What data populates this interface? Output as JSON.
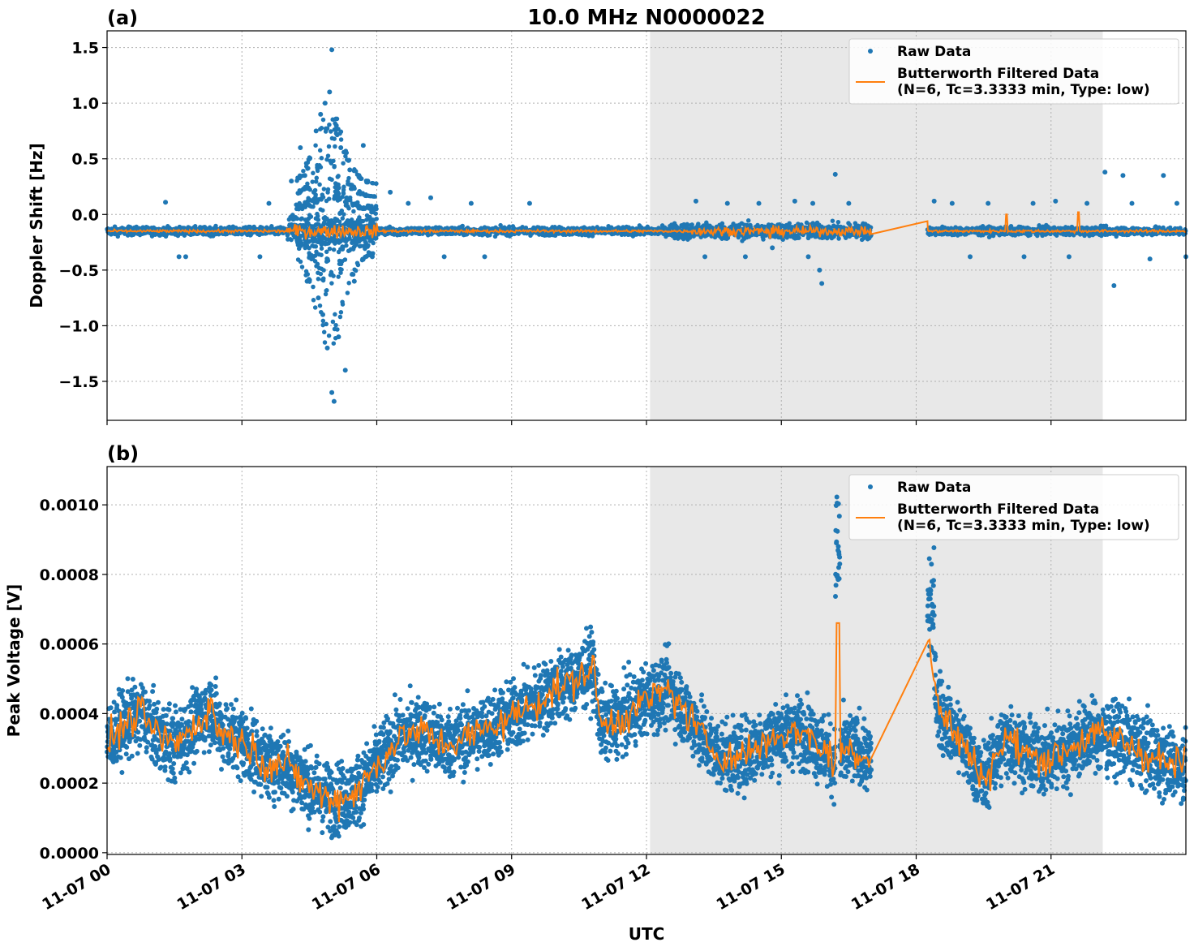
{
  "figure": {
    "title": "10.0 MHz N0000022",
    "xlabel": "UTC",
    "colors": {
      "raw": "#1f77b4",
      "filtered": "#ff7f0e",
      "shade": "#e8e8e8",
      "grid": "#b0b0b0"
    }
  },
  "chart_data": [
    {
      "type": "scatter",
      "panel_tag": "(a)",
      "title": "10.0 MHz N0000022",
      "ylabel": "Doppler Shift [Hz]",
      "xlabel": "",
      "x_unit": "hours UTC on 11-07",
      "xlim": [
        0,
        24
      ],
      "ylim": [
        -1.85,
        1.65
      ],
      "yticks": [
        1.5,
        1.0,
        0.5,
        0.0,
        -0.5,
        -1.0,
        -1.5
      ],
      "ytick_labels": [
        "1.5",
        "1.0",
        "0.5",
        "0.0",
        "−0.5",
        "−1.0",
        "−1.5"
      ],
      "grid": true,
      "legend": {
        "placement": "top-right",
        "entries": [
          {
            "label": "Raw Data",
            "kind": "marker"
          },
          {
            "label": "Butterworth Filtered Data",
            "label2": "(N=6, Tc=3.3333 min, Type: low)",
            "kind": "line"
          }
        ]
      },
      "shaded_interval": [
        12.08,
        22.15
      ],
      "gaps": [
        [
          17.0,
          18.25
        ]
      ],
      "series": [
        {
          "name": "Raw Data",
          "baseline": -0.15,
          "scatter_outliers": [
            [
              1.3,
              0.11
            ],
            [
              1.6,
              -0.38
            ],
            [
              1.75,
              -0.38
            ],
            [
              2.1,
              -0.12
            ],
            [
              3.4,
              -0.38
            ],
            [
              3.6,
              0.1
            ],
            [
              4.1,
              0.3
            ],
            [
              4.3,
              0.6
            ],
            [
              4.4,
              0.35
            ],
            [
              4.45,
              -0.6
            ],
            [
              4.5,
              0.5
            ],
            [
              4.55,
              -0.4
            ],
            [
              4.6,
              0.2
            ],
            [
              4.65,
              0.75
            ],
            [
              4.7,
              -0.75
            ],
            [
              4.75,
              0.9
            ],
            [
              4.8,
              -0.9
            ],
            [
              4.85,
              1.0
            ],
            [
              4.9,
              -1.2
            ],
            [
              4.95,
              1.1
            ],
            [
              5.0,
              1.48
            ],
            [
              5.0,
              -1.6
            ],
            [
              5.05,
              -1.68
            ],
            [
              5.1,
              0.8
            ],
            [
              5.15,
              -1.1
            ],
            [
              5.2,
              0.6
            ],
            [
              5.3,
              -1.4
            ],
            [
              5.4,
              0.4
            ],
            [
              5.5,
              -0.6
            ],
            [
              5.7,
              0.62
            ],
            [
              5.8,
              0.3
            ],
            [
              5.9,
              -0.38
            ],
            [
              6.3,
              0.2
            ],
            [
              6.7,
              0.1
            ],
            [
              7.2,
              0.15
            ],
            [
              7.5,
              -0.38
            ],
            [
              8.1,
              0.1
            ],
            [
              8.4,
              -0.38
            ],
            [
              9.4,
              0.1
            ],
            [
              13.1,
              0.12
            ],
            [
              13.3,
              -0.38
            ],
            [
              13.8,
              0.1
            ],
            [
              14.2,
              -0.38
            ],
            [
              14.5,
              0.1
            ],
            [
              14.8,
              -0.3
            ],
            [
              15.3,
              0.12
            ],
            [
              15.6,
              -0.38
            ],
            [
              15.7,
              0.1
            ],
            [
              15.85,
              -0.5
            ],
            [
              15.9,
              -0.62
            ],
            [
              16.2,
              0.36
            ],
            [
              16.5,
              0.1
            ],
            [
              18.4,
              0.12
            ],
            [
              18.8,
              0.1
            ],
            [
              19.2,
              -0.38
            ],
            [
              19.6,
              0.1
            ],
            [
              20.4,
              -0.38
            ],
            [
              20.6,
              0.1
            ],
            [
              21.1,
              0.12
            ],
            [
              21.4,
              -0.38
            ],
            [
              21.8,
              0.1
            ],
            [
              22.2,
              0.38
            ],
            [
              22.4,
              -0.64
            ],
            [
              22.6,
              0.35
            ],
            [
              22.8,
              0.1
            ],
            [
              23.2,
              -0.4
            ],
            [
              23.5,
              0.35
            ],
            [
              23.8,
              0.1
            ],
            [
              24.0,
              -0.38
            ]
          ]
        },
        {
          "name": "Butterworth Filtered Data",
          "baseline": -0.15
        }
      ]
    },
    {
      "type": "scatter",
      "panel_tag": "(b)",
      "title": "",
      "ylabel": "Peak Voltage [V]",
      "xlabel": "UTC",
      "x_unit": "hours UTC on 11-07",
      "xlim": [
        0,
        24
      ],
      "ylim": [
        -5e-06,
        0.00111
      ],
      "yticks": [
        0.001,
        0.0008,
        0.0006,
        0.0004,
        0.0002,
        0.0
      ],
      "ytick_labels": [
        "0.0010",
        "0.0008",
        "0.0006",
        "0.0004",
        "0.0002",
        "0.0000"
      ],
      "xticks": [
        0,
        3,
        6,
        9,
        12,
        15,
        18,
        21
      ],
      "xtick_labels": [
        "11-07 00",
        "11-07 03",
        "11-07 06",
        "11-07 09",
        "11-07 12",
        "11-07 15",
        "11-07 18",
        "11-07 21"
      ],
      "grid": true,
      "legend": {
        "placement": "top-right",
        "entries": [
          {
            "label": "Raw Data",
            "kind": "marker"
          },
          {
            "label": "Butterworth Filtered Data",
            "label2": "(N=6, Tc=3.3333 min, Type: low)",
            "kind": "line"
          }
        ]
      },
      "shaded_interval": [
        12.08,
        22.15
      ],
      "gaps": [
        [
          17.0,
          18.25
        ]
      ],
      "series": [
        {
          "name": "Raw Data",
          "band_halfwidth": 9e-05
        },
        {
          "name": "Butterworth Filtered Data",
          "x": [
            0,
            0.5,
            0.8,
            1.0,
            1.5,
            2.0,
            2.3,
            2.5,
            3.0,
            3.5,
            4.0,
            4.5,
            5.0,
            5.5,
            6.0,
            6.5,
            7.0,
            7.5,
            8.0,
            8.5,
            9.0,
            9.5,
            10.0,
            10.5,
            10.8,
            11.0,
            11.5,
            12.0,
            12.5,
            13.0,
            13.5,
            14.0,
            14.5,
            15.0,
            15.5,
            16.0,
            16.2,
            16.25,
            16.3,
            16.5,
            17.0,
            18.25,
            18.5,
            19.0,
            19.5,
            20.0,
            20.5,
            21.0,
            21.5,
            22.0,
            22.5,
            23.0,
            23.5,
            24.0
          ],
          "y": [
            0.00032,
            0.00038,
            0.0004,
            0.00035,
            0.00031,
            0.00037,
            0.00042,
            0.00035,
            0.00032,
            0.00026,
            0.00025,
            0.00019,
            0.00015,
            0.00017,
            0.00025,
            0.00033,
            0.00035,
            0.00031,
            0.00033,
            0.00036,
            0.00039,
            0.00043,
            0.00047,
            0.0005,
            0.00054,
            0.00036,
            0.00039,
            0.00044,
            0.00047,
            0.00038,
            0.00029,
            0.00027,
            0.00031,
            0.00034,
            0.00035,
            0.00029,
            0.00025,
            0.00066,
            0.00028,
            0.0003,
            0.00027,
            0.00065,
            0.00041,
            0.00032,
            0.00021,
            0.00033,
            0.00028,
            0.00027,
            0.00031,
            0.00034,
            0.00033,
            0.00029,
            0.00026,
            0.00025
          ]
        }
      ]
    }
  ]
}
